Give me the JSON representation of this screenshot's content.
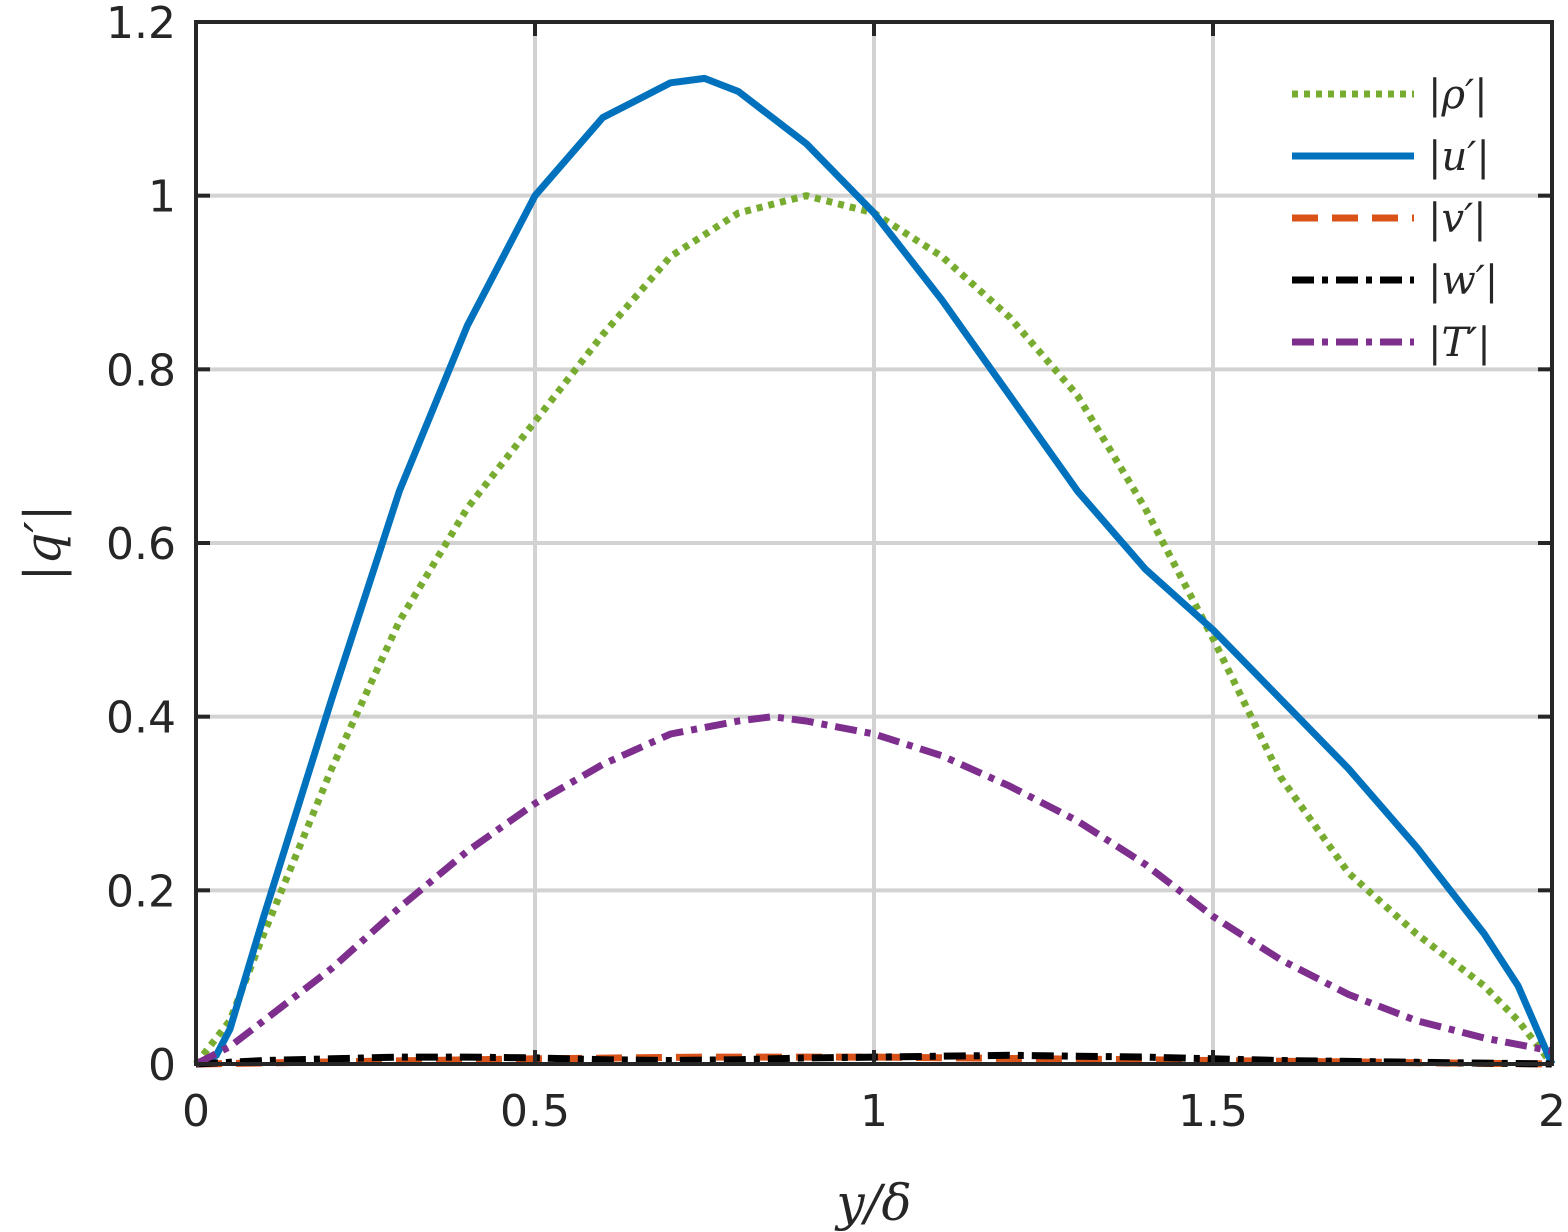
{
  "chart_data": {
    "type": "line",
    "title": "",
    "xlabel": "y/δ",
    "ylabel": "|q′|",
    "xlim": [
      0,
      2
    ],
    "ylim": [
      0,
      1.2
    ],
    "xticks": [
      0,
      0.5,
      1,
      1.5,
      2
    ],
    "xtick_labels": [
      "0",
      "0.5",
      "1",
      "1.5",
      "2"
    ],
    "yticks": [
      0,
      0.2,
      0.4,
      0.6,
      0.8,
      1,
      1.2
    ],
    "ytick_labels": [
      "0",
      "0.2",
      "0.4",
      "0.6",
      "0.8",
      "1",
      "1.2"
    ],
    "grid": true,
    "legend_position": "top-right",
    "series": [
      {
        "name": "|ρ′|",
        "color": "#77AC30",
        "style": "dotted",
        "x": [
          0,
          0.05,
          0.1,
          0.2,
          0.3,
          0.4,
          0.5,
          0.6,
          0.7,
          0.8,
          0.9,
          1.0,
          1.1,
          1.2,
          1.3,
          1.4,
          1.5,
          1.6,
          1.7,
          1.8,
          1.9,
          1.95,
          2.0
        ],
        "y": [
          0,
          0.05,
          0.15,
          0.34,
          0.51,
          0.64,
          0.74,
          0.84,
          0.93,
          0.98,
          1.0,
          0.98,
          0.93,
          0.86,
          0.77,
          0.64,
          0.49,
          0.33,
          0.22,
          0.15,
          0.09,
          0.05,
          0
        ]
      },
      {
        "name": "|u′|",
        "color": "#0072BD",
        "style": "solid",
        "x": [
          0,
          0.03,
          0.05,
          0.1,
          0.2,
          0.3,
          0.4,
          0.5,
          0.6,
          0.7,
          0.75,
          0.8,
          0.9,
          1.0,
          1.1,
          1.2,
          1.3,
          1.4,
          1.5,
          1.6,
          1.7,
          1.8,
          1.9,
          1.95,
          2.0
        ],
        "y": [
          0,
          0.01,
          0.04,
          0.17,
          0.42,
          0.66,
          0.85,
          1.0,
          1.09,
          1.13,
          1.135,
          1.12,
          1.06,
          0.98,
          0.88,
          0.77,
          0.66,
          0.57,
          0.5,
          0.42,
          0.34,
          0.25,
          0.15,
          0.09,
          0
        ]
      },
      {
        "name": "|v′|",
        "color": "#D95319",
        "style": "dashed",
        "x": [
          0,
          0.25,
          0.5,
          0.75,
          1.0,
          1.25,
          1.5,
          1.75,
          2.0
        ],
        "y": [
          0,
          0.003,
          0.006,
          0.008,
          0.008,
          0.006,
          0.004,
          0.002,
          0
        ]
      },
      {
        "name": "|w′|",
        "color": "#000000",
        "style": "dash-dot",
        "x": [
          0,
          0.1,
          0.2,
          0.3,
          0.4,
          0.5,
          0.6,
          0.7,
          0.8,
          0.9,
          1.0,
          1.1,
          1.2,
          1.3,
          1.4,
          1.5,
          1.6,
          1.7,
          1.8,
          1.9,
          2.0
        ],
        "y": [
          0,
          0.004,
          0.006,
          0.008,
          0.008,
          0.007,
          0.005,
          0.004,
          0.005,
          0.007,
          0.008,
          0.009,
          0.01,
          0.009,
          0.008,
          0.006,
          0.004,
          0.003,
          0.002,
          0.001,
          0
        ]
      },
      {
        "name": "|T′|",
        "color": "#7E2F8E",
        "style": "dash-dot",
        "x": [
          0,
          0.05,
          0.1,
          0.2,
          0.3,
          0.4,
          0.5,
          0.6,
          0.7,
          0.8,
          0.85,
          0.9,
          1.0,
          1.1,
          1.2,
          1.3,
          1.4,
          1.5,
          1.6,
          1.7,
          1.8,
          1.9,
          2.0
        ],
        "y": [
          0,
          0.02,
          0.05,
          0.11,
          0.18,
          0.245,
          0.3,
          0.345,
          0.38,
          0.395,
          0.4,
          0.395,
          0.38,
          0.355,
          0.32,
          0.28,
          0.23,
          0.17,
          0.12,
          0.08,
          0.05,
          0.03,
          0.015
        ]
      }
    ]
  }
}
